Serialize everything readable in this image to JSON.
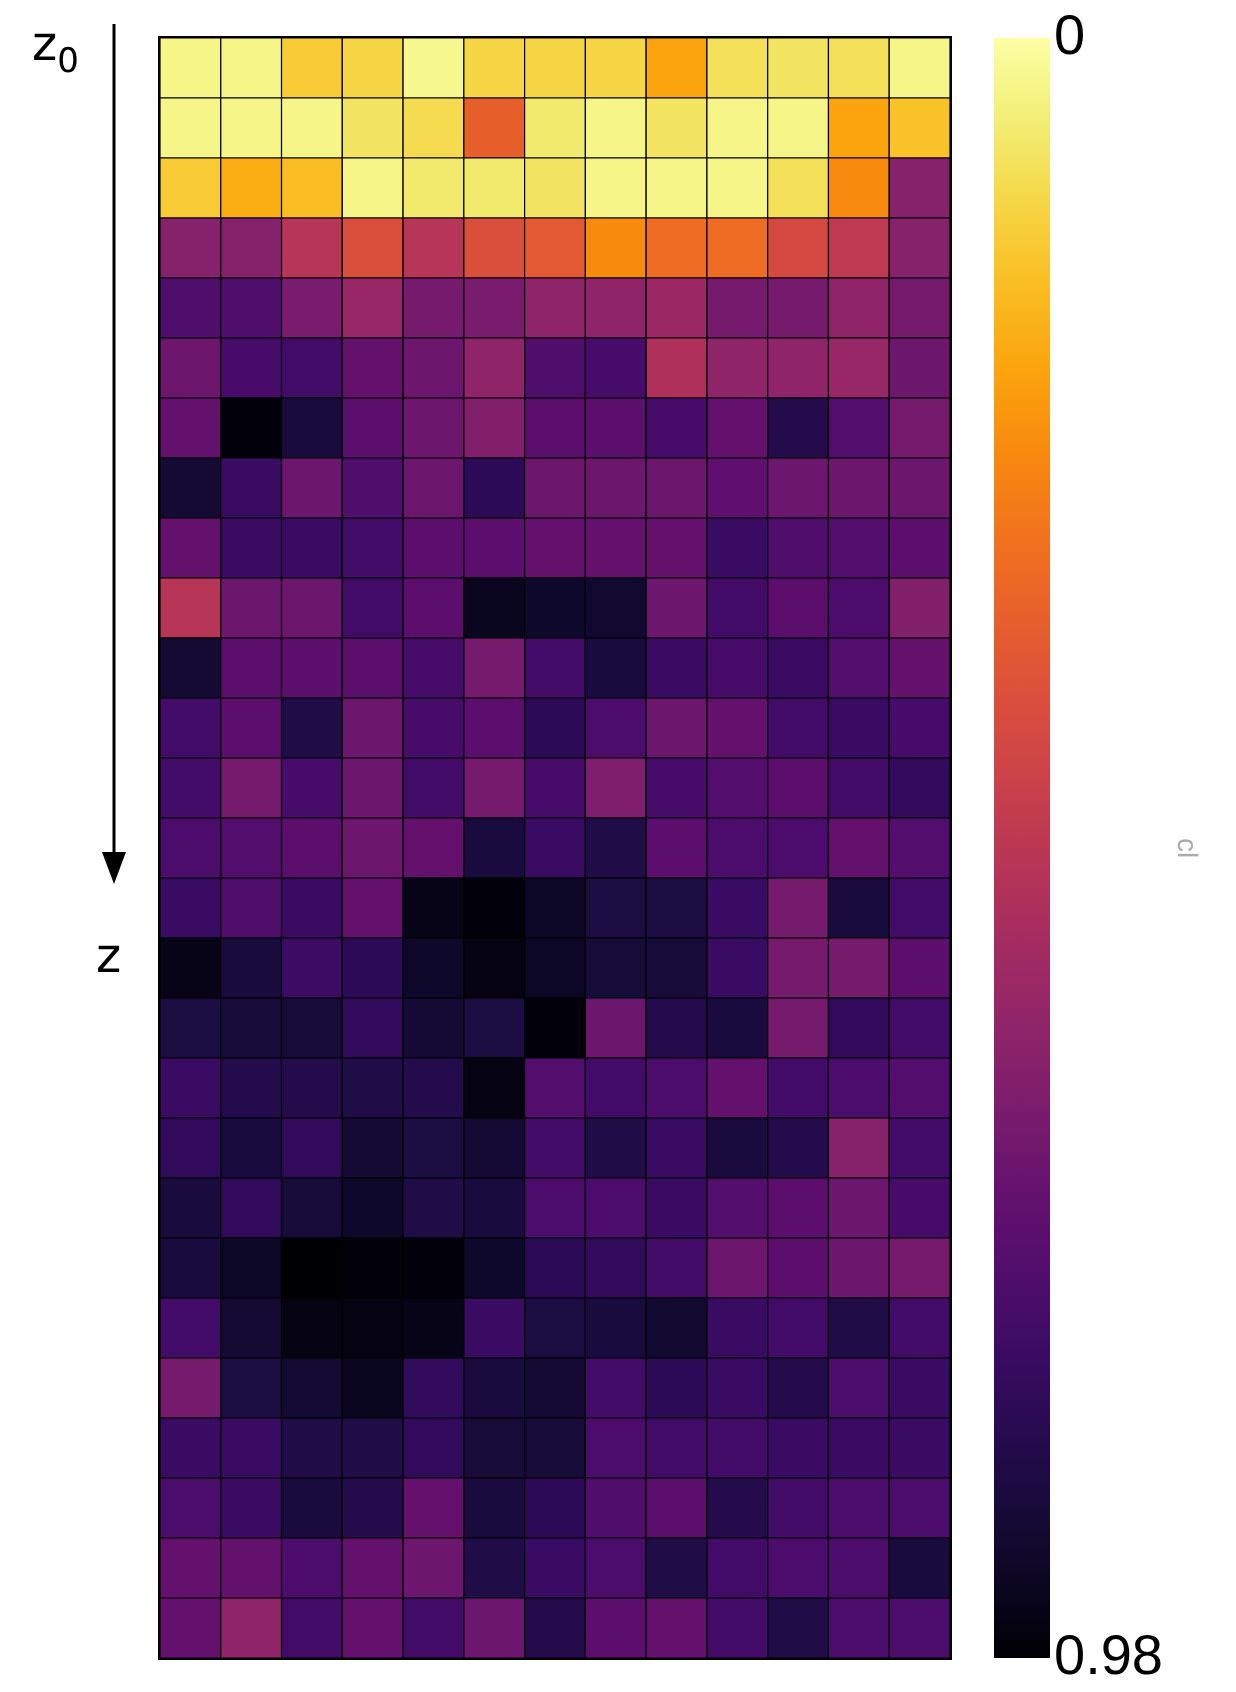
{
  "chart_data": {
    "type": "heatmap",
    "tick_labels": false,
    "clabel": "cl",
    "clim": [
      0,
      0.98
    ],
    "cticks": [
      0,
      0.98
    ],
    "annotations": [
      "z$_{0}$",
      "z"
    ],
    "categories": [
      null,
      null,
      null,
      null,
      null,
      null,
      null,
      null,
      null,
      null,
      null,
      null,
      null
    ],
    "y_categories": [
      null,
      null,
      null,
      null,
      null,
      null,
      null,
      null,
      null,
      null,
      null,
      null,
      null,
      null,
      null,
      null,
      null,
      null,
      null,
      null,
      null,
      null,
      null,
      null,
      null,
      null,
      null
    ],
    "cells": [
      [
        0.03,
        0.03,
        0.12,
        0.1,
        0.02,
        0.1,
        0.1,
        0.1,
        0.2,
        0.08,
        0.07,
        0.08,
        0.03
      ],
      [
        0.03,
        0.03,
        0.03,
        0.07,
        0.09,
        0.35,
        0.06,
        0.03,
        0.07,
        0.03,
        0.03,
        0.2,
        0.14
      ],
      [
        0.12,
        0.18,
        0.15,
        0.03,
        0.06,
        0.06,
        0.07,
        0.03,
        0.03,
        0.03,
        0.08,
        0.25,
        0.62
      ],
      [
        0.62,
        0.62,
        0.5,
        0.4,
        0.5,
        0.4,
        0.37,
        0.25,
        0.32,
        0.32,
        0.42,
        0.48,
        0.62
      ],
      [
        0.75,
        0.75,
        0.65,
        0.58,
        0.66,
        0.65,
        0.6,
        0.6,
        0.57,
        0.66,
        0.66,
        0.6,
        0.66
      ],
      [
        0.68,
        0.77,
        0.78,
        0.7,
        0.68,
        0.6,
        0.75,
        0.77,
        0.52,
        0.6,
        0.6,
        0.58,
        0.68
      ],
      [
        0.7,
        0.97,
        0.88,
        0.72,
        0.68,
        0.63,
        0.72,
        0.72,
        0.77,
        0.7,
        0.85,
        0.74,
        0.66
      ],
      [
        0.9,
        0.8,
        0.68,
        0.75,
        0.68,
        0.83,
        0.68,
        0.68,
        0.68,
        0.71,
        0.68,
        0.68,
        0.68
      ],
      [
        0.7,
        0.8,
        0.8,
        0.78,
        0.72,
        0.72,
        0.7,
        0.7,
        0.7,
        0.8,
        0.75,
        0.74,
        0.72
      ],
      [
        0.5,
        0.68,
        0.68,
        0.78,
        0.72,
        0.94,
        0.92,
        0.91,
        0.68,
        0.78,
        0.72,
        0.76,
        0.63
      ],
      [
        0.9,
        0.72,
        0.72,
        0.72,
        0.77,
        0.66,
        0.78,
        0.88,
        0.8,
        0.77,
        0.8,
        0.74,
        0.7
      ],
      [
        0.78,
        0.72,
        0.86,
        0.68,
        0.77,
        0.72,
        0.83,
        0.76,
        0.68,
        0.7,
        0.78,
        0.8,
        0.77
      ],
      [
        0.78,
        0.66,
        0.77,
        0.68,
        0.78,
        0.66,
        0.77,
        0.64,
        0.77,
        0.74,
        0.72,
        0.78,
        0.82
      ],
      [
        0.76,
        0.74,
        0.72,
        0.68,
        0.7,
        0.88,
        0.8,
        0.86,
        0.72,
        0.76,
        0.76,
        0.7,
        0.74
      ],
      [
        0.8,
        0.75,
        0.8,
        0.7,
        0.95,
        0.97,
        0.93,
        0.87,
        0.87,
        0.8,
        0.66,
        0.88,
        0.78
      ],
      [
        0.95,
        0.88,
        0.79,
        0.83,
        0.92,
        0.96,
        0.93,
        0.89,
        0.89,
        0.8,
        0.66,
        0.66,
        0.72
      ],
      [
        0.87,
        0.89,
        0.89,
        0.82,
        0.9,
        0.87,
        0.97,
        0.68,
        0.85,
        0.88,
        0.66,
        0.82,
        0.78
      ],
      [
        0.8,
        0.85,
        0.85,
        0.86,
        0.85,
        0.96,
        0.74,
        0.78,
        0.76,
        0.7,
        0.78,
        0.76,
        0.74
      ],
      [
        0.82,
        0.88,
        0.82,
        0.9,
        0.87,
        0.9,
        0.78,
        0.86,
        0.8,
        0.88,
        0.85,
        0.62,
        0.78
      ],
      [
        0.88,
        0.82,
        0.89,
        0.92,
        0.86,
        0.88,
        0.76,
        0.76,
        0.8,
        0.74,
        0.72,
        0.68,
        0.77
      ],
      [
        0.88,
        0.93,
        0.98,
        0.97,
        0.97,
        0.92,
        0.83,
        0.82,
        0.78,
        0.68,
        0.72,
        0.68,
        0.66
      ],
      [
        0.78,
        0.9,
        0.96,
        0.96,
        0.95,
        0.8,
        0.87,
        0.88,
        0.91,
        0.8,
        0.78,
        0.86,
        0.78
      ],
      [
        0.66,
        0.87,
        0.9,
        0.94,
        0.82,
        0.88,
        0.9,
        0.78,
        0.83,
        0.8,
        0.85,
        0.76,
        0.8
      ],
      [
        0.8,
        0.8,
        0.86,
        0.86,
        0.82,
        0.89,
        0.89,
        0.76,
        0.78,
        0.78,
        0.8,
        0.8,
        0.8
      ],
      [
        0.76,
        0.8,
        0.88,
        0.85,
        0.7,
        0.88,
        0.83,
        0.75,
        0.72,
        0.85,
        0.78,
        0.76,
        0.76
      ],
      [
        0.7,
        0.7,
        0.76,
        0.7,
        0.68,
        0.86,
        0.8,
        0.76,
        0.86,
        0.78,
        0.76,
        0.76,
        0.88
      ],
      [
        0.7,
        0.6,
        0.78,
        0.7,
        0.78,
        0.68,
        0.85,
        0.72,
        0.7,
        0.78,
        0.86,
        0.76,
        0.76
      ]
    ]
  }
}
